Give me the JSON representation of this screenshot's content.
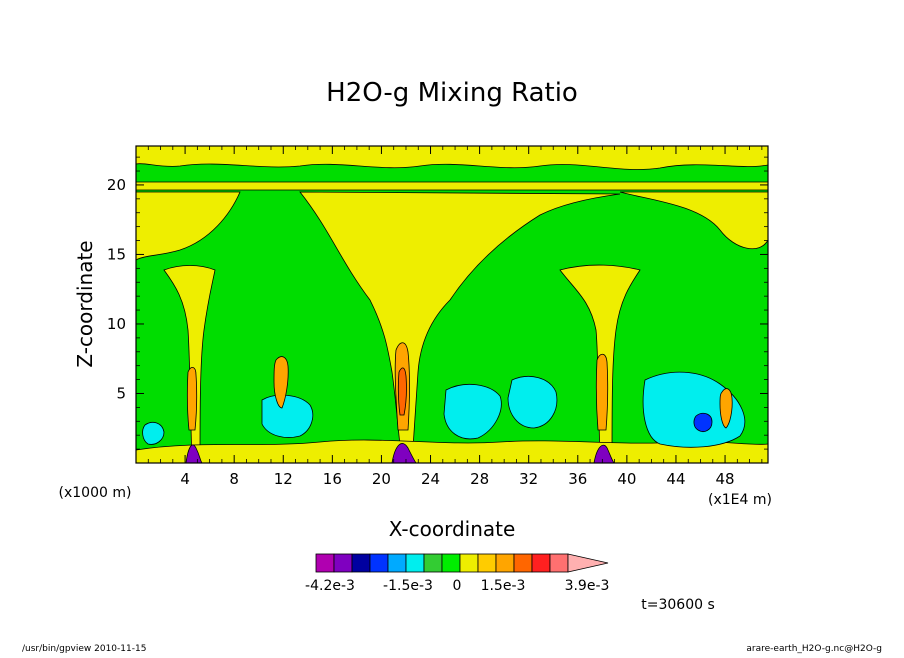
{
  "chart_data": {
    "type": "heatmap",
    "title": "H2O-g Mixing Ratio",
    "xlabel": "X-coordinate",
    "ylabel": "Z-coordinate",
    "x_axis_left_unit": "(x1000 m)",
    "x_axis_right_unit": "(x1E4 m)",
    "xlim": [
      0,
      51.5
    ],
    "ylim": [
      0,
      22.8
    ],
    "x_ticks": [
      4,
      8,
      12,
      16,
      20,
      24,
      28,
      32,
      36,
      40,
      44,
      48
    ],
    "y_ticks": [
      5,
      10,
      15,
      20
    ],
    "colorbar": {
      "colors": [
        "#b000b0",
        "#7f00c0",
        "#0000a0",
        "#0033ff",
        "#00aaff",
        "#00eeee",
        "#33cc33",
        "#00ee00",
        "#eeee00",
        "#ffcc00",
        "#ffa500",
        "#ff6600",
        "#ff2020",
        "#ff7070",
        "#ffb0b0"
      ],
      "labels": [
        "-4.2e-3",
        "-1.5e-3",
        "0",
        "1.5e-3",
        "3.9e-3"
      ]
    },
    "background_level": "#00dd00",
    "time_label": "t=30600 s"
  },
  "footer": {
    "left": "/usr/bin/gpview   2010-11-15",
    "right": "arare-earth_H2O-g.nc@H2O-g"
  }
}
